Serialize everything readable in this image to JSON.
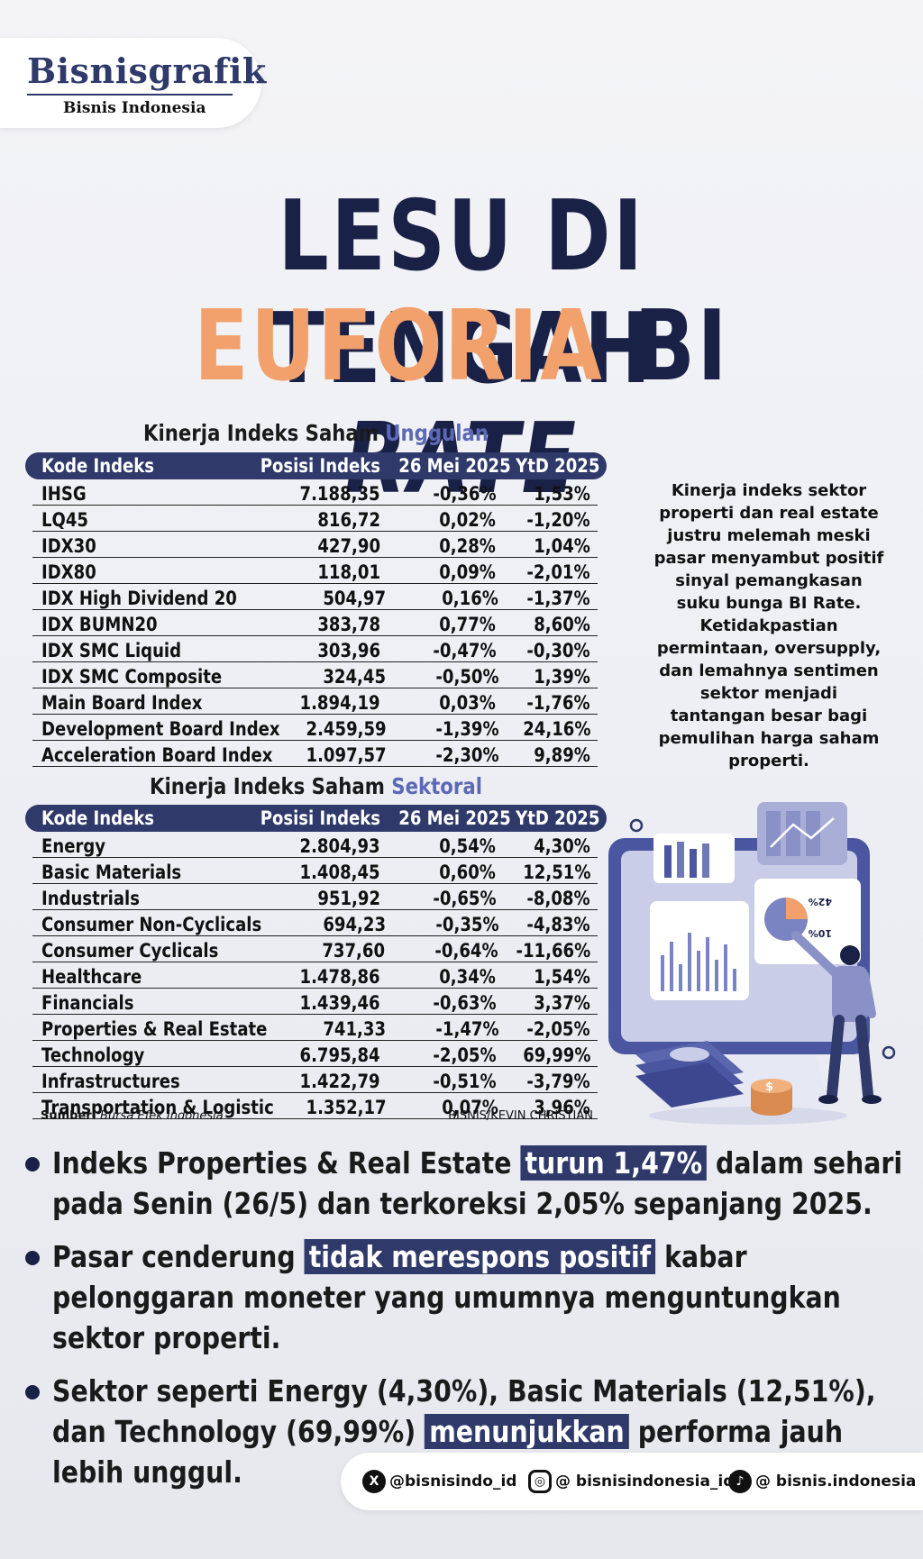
{
  "brand": {
    "name": "Bisnisgrafik",
    "publisher": "Bisnis Indonesia"
  },
  "headline": {
    "line1": "LESU DI TENGAH",
    "line2_a": "EUFORIA",
    "line2_b": "BI",
    "line2_c": "RATE"
  },
  "table1": {
    "title_a": "Kinerja Indeks Saham ",
    "title_b": "Unggulan",
    "headers": [
      "Kode Indeks",
      "Posisi Indeks",
      "26 Mei 2025",
      "YtD 2025"
    ],
    "rows": [
      [
        "IHSG",
        "7.188,35",
        "-0,36%",
        "1,53%"
      ],
      [
        "LQ45",
        "816,72",
        "0,02%",
        "-1,20%"
      ],
      [
        "IDX30",
        "427,90",
        "0,28%",
        "1,04%"
      ],
      [
        "IDX80",
        "118,01",
        "0,09%",
        "-2,01%"
      ],
      [
        "IDX High Dividend 20",
        "504,97",
        "0,16%",
        "-1,37%"
      ],
      [
        "IDX BUMN20",
        "383,78",
        "0,77%",
        "8,60%"
      ],
      [
        "IDX SMC Liquid",
        "303,96",
        "-0,47%",
        "-0,30%"
      ],
      [
        "IDX SMC Composite",
        "324,45",
        "-0,50%",
        "1,39%"
      ],
      [
        "Main Board Index",
        "1.894,19",
        "0,03%",
        "-1,76%"
      ],
      [
        "Development Board Index",
        "2.459,59",
        "-1,39%",
        "24,16%"
      ],
      [
        "Acceleration Board Index",
        "1.097,57",
        "-2,30%",
        "9,89%"
      ]
    ]
  },
  "table2": {
    "title_a": "Kinerja Indeks Saham ",
    "title_b": "Sektoral",
    "headers": [
      "Kode Indeks",
      "Posisi Indeks",
      "26 Mei 2025",
      "YtD 2025"
    ],
    "rows": [
      [
        "Energy",
        "2.804,93",
        "0,54%",
        "4,30%"
      ],
      [
        "Basic Materials",
        "1.408,45",
        "0,60%",
        "12,51%"
      ],
      [
        "Industrials",
        "951,92",
        "-0,65%",
        "-8,08%"
      ],
      [
        "Consumer Non-Cyclicals",
        "694,23",
        "-0,35%",
        "-4,83%"
      ],
      [
        "Consumer Cyclicals",
        "737,60",
        "-0,64%",
        "-11,66%"
      ],
      [
        "Healthcare",
        "1.478,86",
        "0,34%",
        "1,54%"
      ],
      [
        "Financials",
        "1.439,46",
        "-0,63%",
        "3,37%"
      ],
      [
        "Properties & Real Estate",
        "741,33",
        "-1,47%",
        "-2,05%"
      ],
      [
        "Technology",
        "6.795,84",
        "-2,05%",
        "69,99%"
      ],
      [
        "Infrastructures",
        "1.422,79",
        "-0,51%",
        "-3,79%"
      ],
      [
        "Transportation & Logistic",
        "1.352,17",
        "0,07%",
        "3,96%"
      ]
    ]
  },
  "source": {
    "label": "Sumber:",
    "value": "Bursa Efek Indonesia"
  },
  "credit": "BISNIS/KEVIN CHRISTIAN",
  "side_text": "Kinerja indeks sektor properti dan real estate justru melemah meski pasar menyambut positif sinyal pemangkasan suku bunga BI Rate. Ketidakpastian permintaan, oversupply, dan lemahnya sentimen sektor menjadi tantangan besar bagi pemulihan harga saham properti.",
  "illustration": {
    "label_top": "42%",
    "label_bottom": "10%"
  },
  "bullets": [
    {
      "pre": "Indeks Properties & Real Estate ",
      "hl": "turun 1,47%",
      "post": " dalam sehari pada Senin (26/5) dan terkoreksi 2,05% sepanjang 2025."
    },
    {
      "pre": "Pasar cenderung ",
      "hl": "tidak merespons positif",
      "post": " kabar pelonggaran moneter yang umumnya menguntungkan sektor properti."
    },
    {
      "pre": "Sektor seperti Energy (4,30%), Basic Materials (12,51%), dan Technology (69,99%) ",
      "hl": "menunjukkan",
      "post": " performa jauh lebih unggul."
    }
  ],
  "social": [
    {
      "icon": "x-icon",
      "glyph": "X",
      "handle": "@bisnisindo_id"
    },
    {
      "icon": "instagram-icon",
      "glyph": "◎",
      "handle": "@ bisnisindonesia_id"
    },
    {
      "icon": "tiktok-icon",
      "glyph": "♪",
      "handle": "@ bisnis.indonesia"
    }
  ],
  "colors": {
    "navy": "#2f3a6b",
    "dark_navy": "#1a2147",
    "orange": "#f2a06c",
    "accent_blue": "#5c6ab5"
  }
}
